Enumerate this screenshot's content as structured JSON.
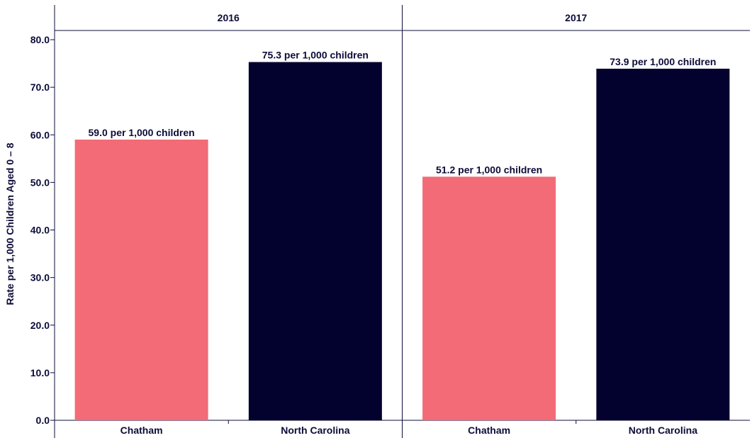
{
  "chart_data": {
    "type": "bar",
    "ylabel": "Rate per 1,000 Children Aged 0 – 8",
    "ylim": [
      0,
      80
    ],
    "yticks": [
      "0.0",
      "10.0",
      "20.0",
      "30.0",
      "40.0",
      "50.0",
      "60.0",
      "70.0",
      "80.0"
    ],
    "panels": [
      {
        "title": "2016",
        "categories": [
          "Chatham",
          "North Carolina"
        ],
        "values": [
          59.0,
          75.3
        ],
        "labels": [
          "59.0 per 1,000 children",
          "75.3 per 1,000 children"
        ]
      },
      {
        "title": "2017",
        "categories": [
          "Chatham",
          "North Carolina"
        ],
        "values": [
          51.2,
          73.9
        ],
        "labels": [
          "51.2 per 1,000 children",
          "73.9 per 1,000 children"
        ]
      }
    ],
    "colors": {
      "Chatham": "#f26b76",
      "North Carolina": "#03022e"
    },
    "grid": false,
    "legend": "none"
  }
}
